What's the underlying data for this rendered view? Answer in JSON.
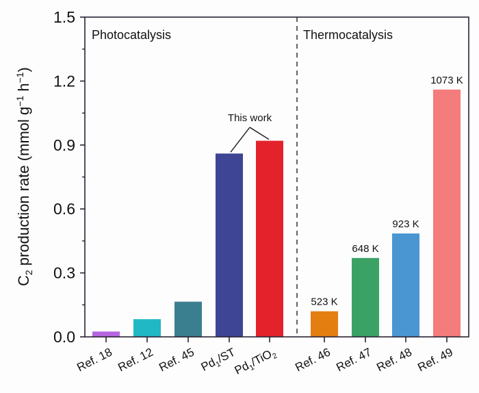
{
  "chart_data": {
    "type": "bar",
    "title": "",
    "xlabel": "",
    "ylabel": "C2 production rate (mmol g−1 h−1)",
    "ylabel_parts": {
      "pre": "C",
      "sub": "2",
      "mid": " production rate (mmol g",
      "sup1": "−1",
      "mid2": " h",
      "sup2": "−1",
      "post": ")"
    },
    "ylim": [
      0,
      1.5
    ],
    "yticks": [
      "0.0",
      "0.3",
      "0.6",
      "0.9",
      "1.2",
      "1.5"
    ],
    "ytick_values": [
      0,
      0.3,
      0.6,
      0.9,
      1.2,
      1.5
    ],
    "grid": false,
    "categories": [
      "Ref. 18",
      "Ref. 12",
      "Ref. 45",
      "Pd1/ST",
      "Pd1/TiO2",
      "Ref. 46",
      "Ref. 47",
      "Ref. 48",
      "Ref. 49"
    ],
    "category_parts": [
      {
        "main": "Ref. 18"
      },
      {
        "main": "Ref. 12"
      },
      {
        "main": "Ref. 45"
      },
      {
        "main": "Pd",
        "sub": "1",
        "rest": "/ST"
      },
      {
        "main": "Pd",
        "sub": "1",
        "rest": "/TiO",
        "sub2": "2"
      },
      {
        "main": "Ref. 46"
      },
      {
        "main": "Ref. 47"
      },
      {
        "main": "Ref. 48"
      },
      {
        "main": "Ref. 49"
      }
    ],
    "values": [
      0.025,
      0.083,
      0.165,
      0.86,
      0.92,
      0.12,
      0.37,
      0.485,
      1.16
    ],
    "colors": [
      "#b565e0",
      "#1fb8c4",
      "#3a7f8f",
      "#3d4594",
      "#e3222b",
      "#e57e10",
      "#3ba265",
      "#4a96d2",
      "#f47c7c"
    ],
    "bar_labels": [
      "",
      "",
      "",
      "",
      "",
      "523 K",
      "648 K",
      "923 K",
      "1073 K"
    ],
    "sections": [
      {
        "label": "Photocatalysis",
        "categories": [
          "Ref. 18",
          "Ref. 12",
          "Ref. 45",
          "Pd1/ST",
          "Pd1/TiO2"
        ]
      },
      {
        "label": "Thermocatalysis",
        "categories": [
          "Ref. 46",
          "Ref. 47",
          "Ref. 48",
          "Ref. 49"
        ]
      }
    ],
    "annotations": [
      {
        "text": "This work",
        "targets": [
          "Pd1/ST",
          "Pd1/TiO2"
        ]
      }
    ],
    "legend": "none"
  }
}
